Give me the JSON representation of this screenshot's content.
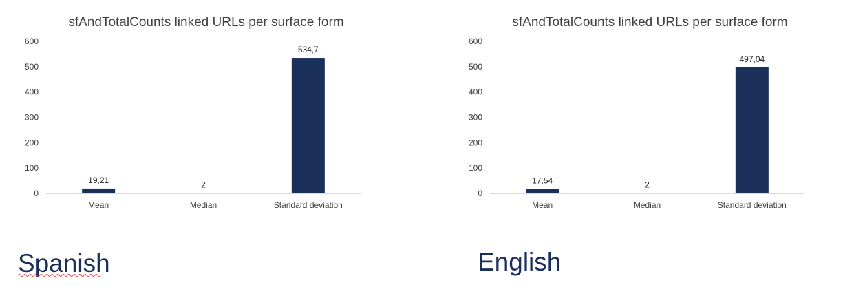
{
  "accent_color": "#1b2f5b",
  "captions": {
    "left": "Spanish",
    "right": "English"
  },
  "chart_data": [
    {
      "type": "bar",
      "title": "sfAndTotalCounts linked URLs per surface form",
      "categories": [
        "Mean",
        "Median",
        "Standard deviation"
      ],
      "values": [
        19.21,
        2,
        534.7
      ],
      "data_labels": [
        "19,21",
        "2",
        "534,7"
      ],
      "ylim": [
        0,
        600
      ],
      "yticks": [
        0,
        100,
        200,
        300,
        400,
        500,
        600
      ],
      "grid": false,
      "bar_color": "#1b2f5b"
    },
    {
      "type": "bar",
      "title": "sfAndTotalCounts linked URLs per surface form",
      "categories": [
        "Mean",
        "Median",
        "Standard deviation"
      ],
      "values": [
        17.54,
        2,
        497.04
      ],
      "data_labels": [
        "17,54",
        "2",
        "497,04"
      ],
      "ylim": [
        0,
        600
      ],
      "yticks": [
        0,
        100,
        200,
        300,
        400,
        500,
        600
      ],
      "grid": false,
      "bar_color": "#1b2f5b"
    }
  ]
}
